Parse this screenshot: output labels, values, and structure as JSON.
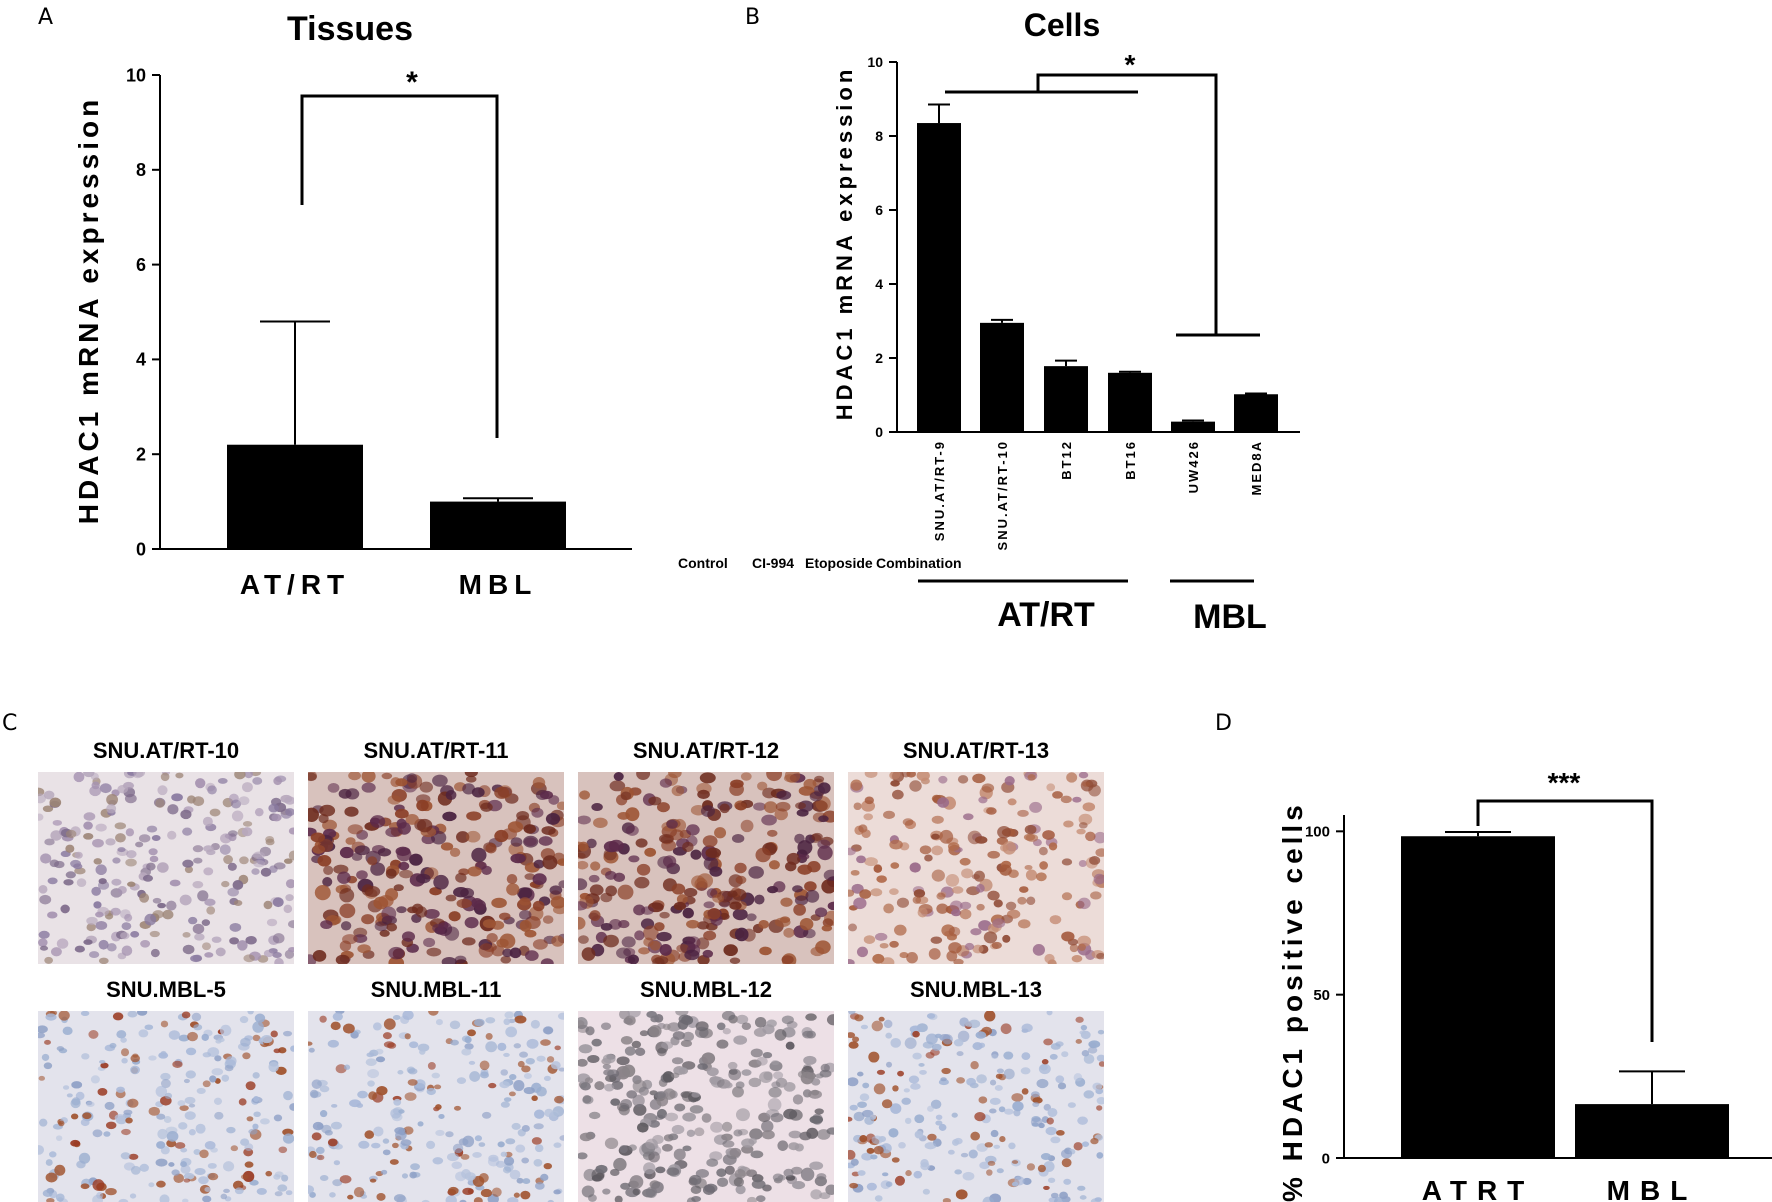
{
  "panels": {
    "A": {
      "letter": "A",
      "chart_data": {
        "type": "bar",
        "title": "Tissues",
        "ylabel": "HDAC1 mRNA expression",
        "xlabel": "",
        "categories": [
          "AT/RT",
          "MBL"
        ],
        "values": [
          2.2,
          1.0
        ],
        "errors": [
          2.6,
          0.07
        ],
        "ylim": [
          0,
          10
        ],
        "yticks": [
          "0",
          "2",
          "4",
          "6",
          "8",
          "10"
        ],
        "significance": "*",
        "grid": false,
        "color": "#000000"
      }
    },
    "B": {
      "letter": "B",
      "chart_data": {
        "type": "bar",
        "title": "Cells",
        "ylabel": "HDAC1 mRNA expression",
        "xlabel": "",
        "categories": [
          "SNU.AT/RT-9",
          "SNU.AT/RT-10",
          "BT12",
          "BT16",
          "UW426",
          "MED8A"
        ],
        "values": [
          8.35,
          2.95,
          1.78,
          1.6,
          0.28,
          1.02
        ],
        "errors": [
          0.5,
          0.08,
          0.15,
          0.03,
          0.03,
          0.02
        ],
        "ylim": [
          0,
          10
        ],
        "yticks": [
          "0",
          "2",
          "4",
          "6",
          "8",
          "10"
        ],
        "groups": [
          "AT/RT",
          "MBL"
        ],
        "significance": "*",
        "grid": false,
        "color": "#000000"
      },
      "stray_labels": [
        "Control",
        "CI-994",
        "Etoposide",
        "Combination"
      ]
    },
    "C": {
      "letter": "C",
      "images": [
        {
          "label": "SNU.AT/RT-10",
          "stain": "light"
        },
        {
          "label": "SNU.AT/RT-11",
          "stain": "strong"
        },
        {
          "label": "SNU.AT/RT-12",
          "stain": "strong"
        },
        {
          "label": "SNU.AT/RT-13",
          "stain": "moderate"
        },
        {
          "label": "SNU.MBL-5",
          "stain": "sparse"
        },
        {
          "label": "SNU.MBL-11",
          "stain": "sparse"
        },
        {
          "label": "SNU.MBL-12",
          "stain": "grey"
        },
        {
          "label": "SNU.MBL-13",
          "stain": "sparse"
        }
      ]
    },
    "D": {
      "letter": "D",
      "chart_data": {
        "type": "bar",
        "title": "",
        "ylabel": "% HDAC1 positive cells",
        "xlabel": "",
        "categories": [
          "ATRT",
          "MBL"
        ],
        "values": [
          98.5,
          16.5
        ],
        "errors": [
          1.3,
          10.0
        ],
        "ylim": [
          0,
          105
        ],
        "yticks": [
          "0",
          "50",
          "100"
        ],
        "significance": "***",
        "grid": false,
        "color": "#000000"
      }
    }
  }
}
